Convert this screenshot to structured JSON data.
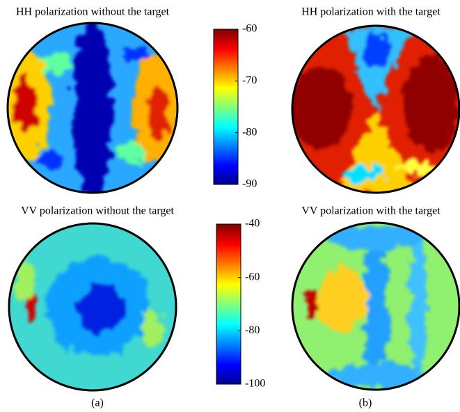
{
  "panels": [
    {
      "title": "HH polarization without the target"
    },
    {
      "title": "HH polarization with the target"
    },
    {
      "title": "VV polarization without the target"
    },
    {
      "title": "VV polarization with the target"
    }
  ],
  "colorbars": [
    {
      "range": [
        -90,
        -60
      ],
      "ticks": [
        -60,
        -70,
        -80,
        -90
      ]
    },
    {
      "range": [
        -100,
        -40
      ],
      "ticks": [
        -40,
        -60,
        -80,
        -100
      ]
    }
  ],
  "captions": [
    "(a)",
    "(b)"
  ]
}
